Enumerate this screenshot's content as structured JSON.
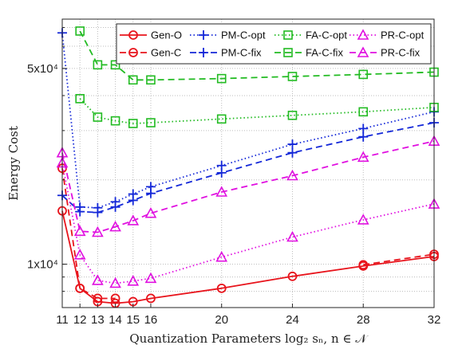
{
  "chart_data": {
    "type": "line",
    "title": "",
    "xlabel": "Quantization Parameters log₂ sₙ, n ∈ 𝒩",
    "ylabel": "Energy Cost",
    "y_scale": "log",
    "xlim": [
      11,
      32
    ],
    "ylim": [
      7000,
      75000
    ],
    "x_ticks": [
      11,
      12,
      13,
      14,
      15,
      16,
      20,
      24,
      28,
      32
    ],
    "y_ticks": [
      {
        "value": 10000,
        "label": "1x10⁴"
      },
      {
        "value": 50000,
        "label": "5x10⁴"
      }
    ],
    "grid": "dotted",
    "legend_position": "top-right",
    "x": [
      11,
      12,
      13,
      14,
      15,
      16,
      20,
      24,
      28,
      32
    ],
    "series": [
      {
        "name": "Gen-O",
        "color": "#e8141c",
        "dash": "solid",
        "marker": "circle",
        "values": [
          15500,
          8200,
          7350,
          7250,
          7350,
          7550,
          8200,
          9050,
          9850,
          10650
        ]
      },
      {
        "name": "Gen-C",
        "color": "#e8141c",
        "dash": "dashed",
        "marker": "circle",
        "values": [
          22000,
          8200,
          7550,
          7550,
          null,
          null,
          null,
          null,
          9950,
          10850
        ]
      },
      {
        "name": "PM-C-opt",
        "color": "#1428d8",
        "dash": "dotted",
        "marker": "plus",
        "values": [
          67000,
          16000,
          15900,
          16700,
          17800,
          18900,
          22500,
          26800,
          30500,
          35000
        ]
      },
      {
        "name": "PM-C-fix",
        "color": "#1428d8",
        "dash": "dashed",
        "marker": "plus",
        "values": [
          17600,
          15400,
          15300,
          16000,
          16900,
          17900,
          21200,
          25000,
          28500,
          32000
        ]
      },
      {
        "name": "FA-C-opt",
        "color": "#22bb22",
        "dash": "dotted",
        "marker": "square",
        "values": [
          null,
          39000,
          33500,
          32500,
          31800,
          32000,
          33000,
          34000,
          35000,
          36300
        ]
      },
      {
        "name": "FA-C-fix",
        "color": "#22bb22",
        "dash": "dashed",
        "marker": "square",
        "values": [
          null,
          68000,
          51500,
          51500,
          45500,
          45500,
          46000,
          46800,
          47600,
          48500
        ]
      },
      {
        "name": "PR-C-opt",
        "color": "#e010e0",
        "dash": "dotted",
        "marker": "triangle",
        "values": [
          23000,
          10800,
          8750,
          8550,
          8700,
          8900,
          10600,
          12500,
          14400,
          16400
        ]
      },
      {
        "name": "PR-C-fix",
        "color": "#e010e0",
        "dash": "dashed",
        "marker": "triangle",
        "values": [
          25000,
          13100,
          13000,
          13600,
          14300,
          15200,
          18100,
          20700,
          24100,
          27500
        ]
      }
    ]
  }
}
